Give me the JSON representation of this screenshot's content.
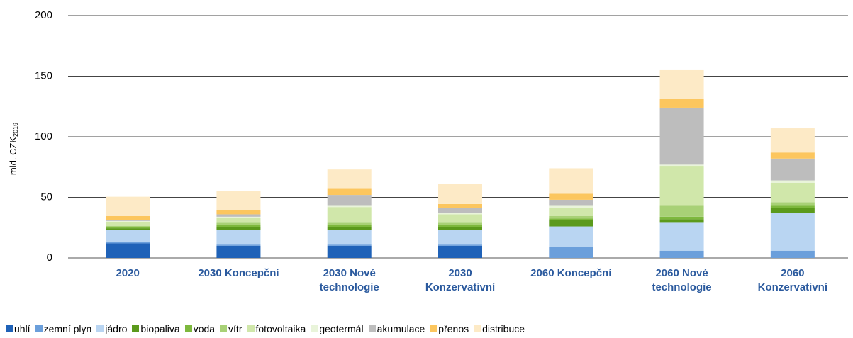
{
  "chart_data": {
    "type": "stacked_bar",
    "y_label": "mld. CZK",
    "y_label_subscript": "2019",
    "categories": [
      "2020",
      "2030 Koncepční",
      "2030 Nové technologie",
      "2030 Konzervativní",
      "2060 Koncepční",
      "2060 Nové technologie",
      "2060 Konzervativní"
    ],
    "series": [
      {
        "name": "uhlí",
        "color": "#1f62b8",
        "values": [
          12,
          10,
          10,
          10,
          0,
          0,
          0
        ]
      },
      {
        "name": "zemní plyn",
        "color": "#6b9fdb",
        "values": [
          1,
          1,
          1,
          1,
          9,
          6,
          6
        ]
      },
      {
        "name": "jádro",
        "color": "#b9d5f2",
        "values": [
          10,
          12,
          12,
          12,
          17,
          23,
          31
        ]
      },
      {
        "name": "biopaliva",
        "color": "#5b9a1c",
        "values": [
          1.5,
          2.5,
          2.5,
          2.5,
          5,
          3,
          4
        ]
      },
      {
        "name": "voda",
        "color": "#7db83d",
        "values": [
          1,
          1.5,
          1.5,
          1.5,
          1.5,
          2,
          2
        ]
      },
      {
        "name": "vítr",
        "color": "#a8d176",
        "values": [
          1,
          2,
          2,
          2,
          2,
          9,
          3
        ]
      },
      {
        "name": "fotovoltaika",
        "color": "#d0e7aa",
        "values": [
          3,
          4,
          13,
          7,
          7,
          33,
          16
        ]
      },
      {
        "name": "geotermál",
        "color": "#e9f4da",
        "values": [
          1,
          1,
          1,
          1,
          1.5,
          1,
          2
        ]
      },
      {
        "name": "akumulace",
        "color": "#bdbdbd",
        "values": [
          1,
          2,
          9,
          4,
          5,
          47,
          18
        ]
      },
      {
        "name": "přenos",
        "color": "#fcc65e",
        "values": [
          3,
          3.5,
          5,
          3.5,
          5,
          7,
          5
        ]
      },
      {
        "name": "distribuce",
        "color": "#fdeac6",
        "values": [
          16,
          15.5,
          16,
          16.5,
          21,
          24,
          20
        ]
      }
    ],
    "ylim": [
      0,
      200
    ],
    "yticks": [
      0,
      50,
      100,
      150,
      200
    ],
    "grid": true
  }
}
